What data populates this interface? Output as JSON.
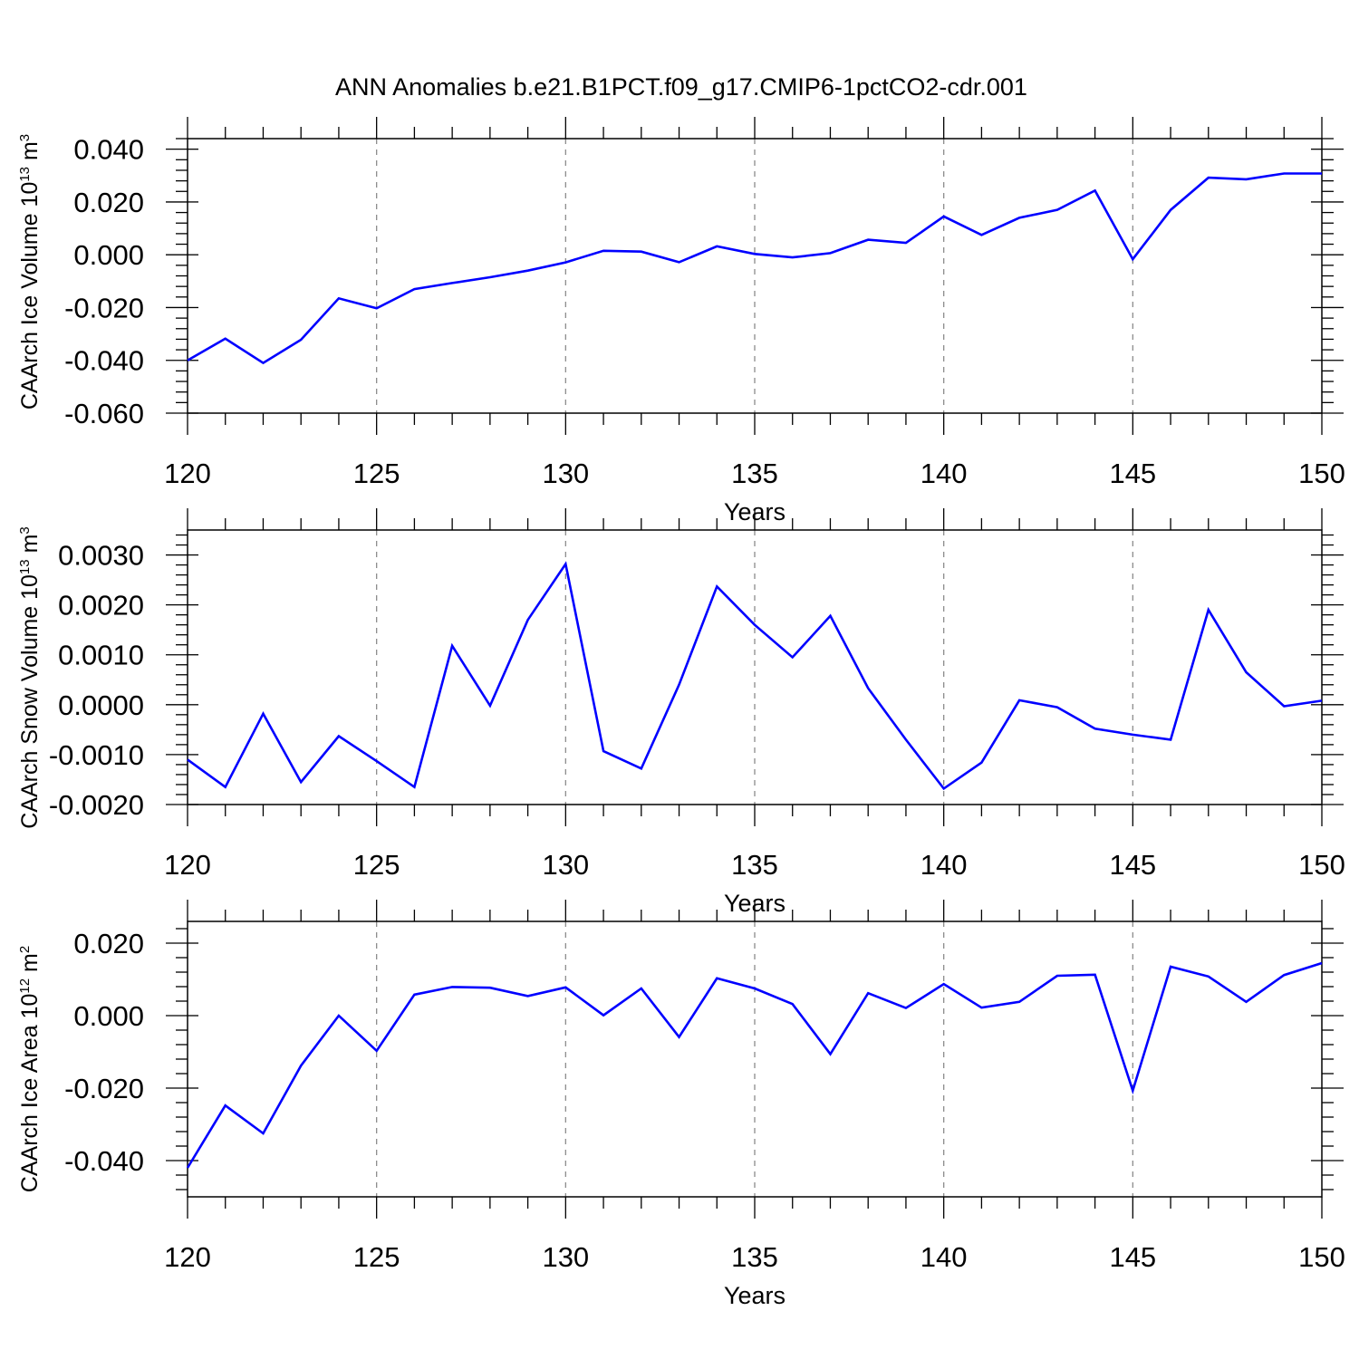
{
  "title": "ANN Anomalies b.e21.B1PCT.f09_g17.CMIP6-1pctCO2-cdr.001",
  "colors": {
    "line": "#0000ff",
    "axis": "#000000",
    "grid": "#8c8c8c",
    "background": "#ffffff"
  },
  "chart_data": [
    {
      "type": "line",
      "ylabel": {
        "main": "CAArch Ice Volume 10",
        "exp": "13",
        "unit": "m",
        "unit_exp": "3"
      },
      "xlabel": "Years",
      "xlim": [
        120,
        150
      ],
      "ylim": [
        -0.06,
        0.044
      ],
      "xticks": [
        120,
        125,
        130,
        135,
        140,
        145,
        150
      ],
      "xtick_labels": [
        "120",
        "125",
        "130",
        "135",
        "140",
        "145",
        "150"
      ],
      "yticks": [
        -0.06,
        -0.04,
        -0.02,
        0.0,
        0.02,
        0.04
      ],
      "ytick_labels": [
        "-0.060",
        "-0.040",
        "-0.020",
        "0.000",
        "0.020",
        "0.040"
      ],
      "grid": "vertical-dashed",
      "x": [
        120,
        121,
        122,
        123,
        124,
        125,
        126,
        127,
        128,
        129,
        130,
        131,
        132,
        133,
        134,
        135,
        136,
        137,
        138,
        139,
        140,
        141,
        142,
        143,
        144,
        145,
        146,
        147,
        148,
        149,
        150
      ],
      "values": [
        -0.04,
        -0.0318,
        -0.041,
        -0.0322,
        -0.0165,
        -0.0203,
        -0.013,
        -0.0107,
        -0.0085,
        -0.006,
        -0.0029,
        0.0015,
        0.0012,
        -0.0028,
        0.0032,
        0.0003,
        -0.001,
        0.0006,
        0.0057,
        0.0045,
        0.0145,
        0.0075,
        0.014,
        0.017,
        0.0243,
        -0.0017,
        0.017,
        0.0292,
        0.0286,
        0.0308,
        0.0308
      ]
    },
    {
      "type": "line",
      "ylabel": {
        "main": "CAArch Snow Volume 10",
        "exp": "13",
        "unit": "m",
        "unit_exp": "3"
      },
      "xlabel": "Years",
      "xlim": [
        120,
        150
      ],
      "ylim": [
        -0.002,
        0.0035
      ],
      "xticks": [
        120,
        125,
        130,
        135,
        140,
        145,
        150
      ],
      "xtick_labels": [
        "120",
        "125",
        "130",
        "135",
        "140",
        "145",
        "150"
      ],
      "yticks": [
        -0.002,
        -0.001,
        0.0,
        0.001,
        0.002,
        0.003
      ],
      "ytick_labels": [
        "-0.0020",
        "-0.0010",
        "0.0000",
        "0.0010",
        "0.0020",
        "0.0030"
      ],
      "grid": "vertical-dashed",
      "x": [
        120,
        121,
        122,
        123,
        124,
        125,
        126,
        127,
        128,
        129,
        130,
        131,
        132,
        133,
        134,
        135,
        136,
        137,
        138,
        139,
        140,
        141,
        142,
        143,
        144,
        145,
        146,
        147,
        148,
        149,
        150
      ],
      "values": [
        -0.0011,
        -0.00165,
        -0.00018,
        -0.00155,
        -0.00063,
        -0.00113,
        -0.00165,
        0.00118,
        -2e-05,
        0.0017,
        0.00282,
        -0.00093,
        -0.00128,
        0.0004,
        0.00237,
        0.0016,
        0.00095,
        0.00178,
        0.00033,
        -0.0007,
        -0.00168,
        -0.00116,
        9e-05,
        -5e-05,
        -0.00048,
        -0.0006,
        -0.0007,
        0.0019,
        0.00065,
        -3e-05,
        8e-05
      ]
    },
    {
      "type": "line",
      "ylabel": {
        "main": "CAArch Ice Area 10",
        "exp": "12",
        "unit": "m",
        "unit_exp": "2"
      },
      "xlabel": "Years",
      "xlim": [
        120,
        150
      ],
      "ylim": [
        -0.05,
        0.026
      ],
      "xticks": [
        120,
        125,
        130,
        135,
        140,
        145,
        150
      ],
      "xtick_labels": [
        "120",
        "125",
        "130",
        "135",
        "140",
        "145",
        "150"
      ],
      "yticks": [
        -0.04,
        -0.02,
        0.0,
        0.02
      ],
      "ytick_labels": [
        "-0.040",
        "-0.020",
        "0.000",
        "0.020"
      ],
      "grid": "vertical-dashed",
      "x": [
        120,
        121,
        122,
        123,
        124,
        125,
        126,
        127,
        128,
        129,
        130,
        131,
        132,
        133,
        134,
        135,
        136,
        137,
        138,
        139,
        140,
        141,
        142,
        143,
        144,
        145,
        146,
        147,
        148,
        149,
        150
      ],
      "values": [
        -0.042,
        -0.0248,
        -0.0325,
        -0.0138,
        0.0,
        -0.0097,
        0.0058,
        0.0079,
        0.0077,
        0.0054,
        0.0078,
        0.0001,
        0.0075,
        -0.0059,
        0.0103,
        0.0075,
        0.0032,
        -0.0106,
        0.0062,
        0.0021,
        0.0087,
        0.0022,
        0.0038,
        0.011,
        0.0113,
        -0.0207,
        0.0135,
        0.0108,
        0.0038,
        0.0112,
        0.0145
      ]
    }
  ]
}
